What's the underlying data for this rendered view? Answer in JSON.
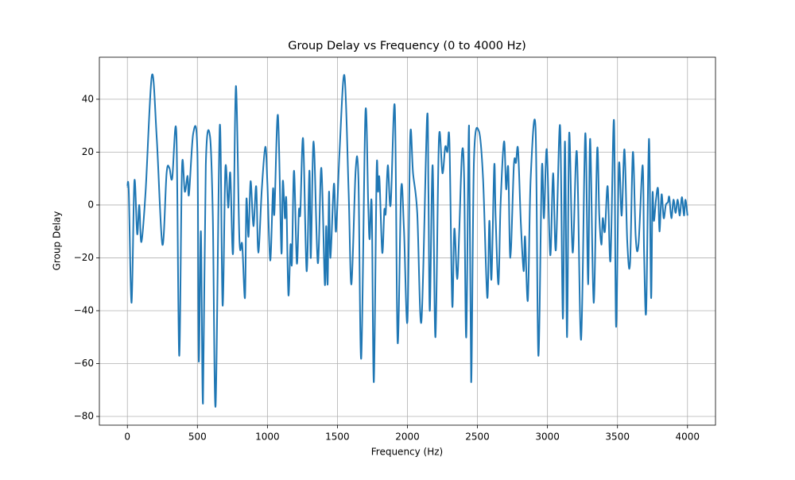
{
  "chart_data": {
    "type": "line",
    "title": "Group Delay vs Frequency (0 to 4000 Hz)",
    "x_label": "Frequency (Hz)",
    "y_label": "Group Delay",
    "color": "#1f77b4",
    "grid": true,
    "xlim": [
      -200,
      4200
    ],
    "ylim": [
      -83.3,
      55.9
    ],
    "xticks": [
      0,
      500,
      1000,
      1500,
      2000,
      2500,
      3000,
      3500,
      4000
    ],
    "yticks": [
      {
        "value": -80,
        "label": "−80"
      },
      {
        "value": -60,
        "label": "−60"
      },
      {
        "value": -40,
        "label": "−40"
      },
      {
        "value": -20,
        "label": "−20"
      },
      0,
      20,
      40
    ],
    "x": [
      0,
      10,
      30,
      50,
      70,
      85,
      100,
      130,
      175,
      210,
      250,
      280,
      300,
      320,
      350,
      370,
      390,
      410,
      430,
      440,
      470,
      500,
      510,
      525,
      540,
      560,
      590,
      610,
      630,
      660,
      680,
      700,
      720,
      735,
      755,
      775,
      800,
      820,
      840,
      850,
      865,
      880,
      900,
      920,
      935,
      960,
      985,
      1000,
      1020,
      1040,
      1050,
      1075,
      1100,
      1110,
      1125,
      1135,
      1150,
      1165,
      1175,
      1190,
      1210,
      1225,
      1235,
      1255,
      1280,
      1300,
      1310,
      1330,
      1360,
      1385,
      1410,
      1420,
      1430,
      1440,
      1450,
      1475,
      1490,
      1515,
      1550,
      1580,
      1600,
      1630,
      1650,
      1670,
      1700,
      1720,
      1730,
      1745,
      1760,
      1780,
      1790,
      1800,
      1820,
      1835,
      1845,
      1860,
      1880,
      1910,
      1930,
      1955,
      1975,
      2000,
      2020,
      2040,
      2070,
      2100,
      2140,
      2150,
      2160,
      2180,
      2200,
      2225,
      2250,
      2270,
      2285,
      2300,
      2320,
      2335,
      2355,
      2370,
      2390,
      2405,
      2420,
      2440,
      2455,
      2475,
      2510,
      2540,
      2570,
      2585,
      2600,
      2620,
      2630,
      2650,
      2665,
      2690,
      2705,
      2720,
      2735,
      2760,
      2775,
      2790,
      2810,
      2830,
      2840,
      2860,
      2880,
      2915,
      2935,
      2960,
      2975,
      2995,
      3020,
      3040,
      3060,
      3090,
      3110,
      3125,
      3140,
      3155,
      3180,
      3210,
      3240,
      3270,
      3290,
      3305,
      3330,
      3355,
      3370,
      3385,
      3395,
      3410,
      3430,
      3450,
      3475,
      3490,
      3510,
      3530,
      3550,
      3570,
      3590,
      3610,
      3630,
      3650,
      3680,
      3690,
      3705,
      3725,
      3740,
      3750,
      3760,
      3775,
      3790,
      3800,
      3815,
      3830,
      3845,
      3860,
      3870,
      3885,
      3900,
      3915,
      3930,
      3945,
      3960,
      3975,
      3985,
      4000
    ],
    "values": [
      7,
      5,
      -37,
      9,
      -11,
      0,
      -14,
      5,
      49,
      25,
      -15,
      12,
      14,
      10,
      27,
      -57,
      14,
      5,
      11,
      4,
      27,
      20,
      -59,
      -10,
      -75,
      15,
      26,
      -4,
      -76,
      30,
      -38,
      14,
      -1,
      12,
      -18,
      45,
      -13,
      -15,
      -35,
      2,
      -12,
      9,
      -8,
      7,
      -18,
      6,
      22,
      8,
      -21,
      6,
      -3,
      34,
      -18,
      9,
      -5,
      2,
      -34,
      -15,
      -22,
      13,
      -22,
      -2,
      -3,
      25,
      -25,
      13,
      -20,
      24,
      -22,
      14,
      -30,
      -8,
      -30,
      5,
      -20,
      8,
      -10,
      20,
      49,
      5,
      -30,
      13,
      10,
      -58,
      35,
      0,
      -13,
      0,
      -67,
      13,
      5,
      10,
      -18,
      -2,
      -3,
      15,
      0,
      37,
      -52,
      6,
      -9,
      -44,
      26,
      12,
      -3,
      -44,
      33,
      5,
      -40,
      15,
      -50,
      25,
      12,
      22,
      20,
      24,
      -38,
      -9,
      -28,
      -10,
      20,
      10,
      -50,
      30,
      -67,
      17,
      28,
      10,
      -35,
      -6,
      -28,
      15,
      -5,
      -30,
      0,
      24,
      6,
      14,
      -20,
      15,
      16,
      21,
      -7,
      -25,
      -12,
      -36,
      10,
      29,
      -57,
      14,
      -5,
      21,
      -19,
      12,
      -17,
      30,
      -43,
      24,
      -50,
      27,
      -18,
      20,
      -51,
      27,
      -30,
      25,
      -37,
      21,
      -4,
      -15,
      -5,
      -10,
      7,
      -21,
      32,
      -46,
      15,
      -4,
      21,
      -14,
      -22,
      20,
      -12,
      -15,
      15,
      -18,
      -40,
      25,
      -35,
      4,
      -6,
      2,
      6,
      -10,
      4,
      -5,
      0,
      1,
      3,
      -5,
      2,
      -3,
      2,
      -4,
      3,
      -4,
      2,
      -4
    ]
  }
}
